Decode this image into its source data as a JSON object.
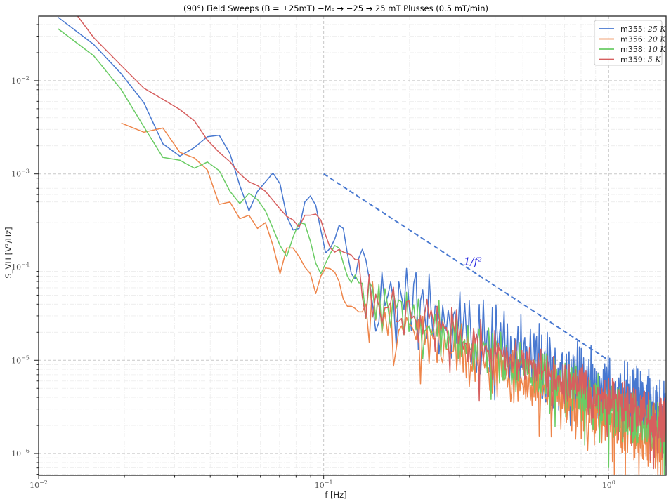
{
  "chart_data": {
    "type": "line",
    "title": "(90°) Field Sweeps (B = ±25mT) −M_s → −25 → 25 mT Plusses (0.5 mT/min)",
    "xlabel": "f [Hz]",
    "ylabel": "S_VH [V²/Hz]",
    "xscale": "log",
    "yscale": "log",
    "xlim": [
      0.01,
      1.59
    ],
    "ylim": [
      5.85e-07,
      0.0492
    ],
    "grid": true,
    "legend_position": "upper right",
    "x_ticks": [
      {
        "value": 0.01,
        "label": "10",
        "exp": "−2"
      },
      {
        "value": 0.1,
        "label": "10",
        "exp": "−1"
      },
      {
        "value": 1,
        "label": "10",
        "exp": "0"
      }
    ],
    "y_ticks": [
      {
        "value": 0.01,
        "label": "10",
        "exp": "−2"
      },
      {
        "value": 0.001,
        "label": "10",
        "exp": "−3"
      },
      {
        "value": 0.0001,
        "label": "10",
        "exp": "−4"
      },
      {
        "value": 1e-05,
        "label": "10",
        "exp": "−5"
      },
      {
        "value": 1e-06,
        "label": "10",
        "exp": "−6"
      }
    ],
    "frequency_step_hz": 0.003906,
    "series": [
      {
        "name": "m355: 25 K",
        "color": "#4878d0",
        "low_freq_points": [
          [
            0.0117,
            0.0478
          ],
          [
            0.0156,
            0.0245
          ],
          [
            0.0195,
            0.0118
          ],
          [
            0.0234,
            0.0058
          ],
          [
            0.0273,
            0.0021
          ],
          [
            0.0313,
            0.00155
          ],
          [
            0.0352,
            0.00192
          ],
          [
            0.0391,
            0.0025
          ],
          [
            0.043,
            0.0026
          ],
          [
            0.0469,
            0.00165
          ],
          [
            0.0508,
            0.00075
          ],
          [
            0.0547,
            0.0004
          ],
          [
            0.0586,
            0.00065
          ],
          [
            0.0625,
            0.00082
          ],
          [
            0.0664,
            0.00102
          ],
          [
            0.0703,
            0.00078
          ],
          [
            0.0742,
            0.00035
          ],
          [
            0.0781,
            0.00025
          ],
          [
            0.082,
            0.00026
          ],
          [
            0.0859,
            0.0005
          ],
          [
            0.0898,
            0.00058
          ],
          [
            0.0938,
            0.00046
          ],
          [
            0.0977,
            0.00025
          ],
          [
            0.1016,
            0.000142
          ],
          [
            0.1055,
            0.00016
          ],
          [
            0.1094,
            0.0002
          ],
          [
            0.1133,
            0.00028
          ],
          [
            0.1172,
            0.00026
          ],
          [
            0.1211,
            0.00014
          ],
          [
            0.125,
            8.5e-05
          ],
          [
            0.1289,
            7.5e-05
          ],
          [
            0.1328,
            0.000125
          ],
          [
            0.1367,
            0.000155
          ],
          [
            0.1406,
            0.00012
          ],
          [
            0.1445,
            7.5e-05
          ]
        ],
        "tail_model": {
          "amp_at_1hz": 4.5e-06,
          "slope": -1.35,
          "oscillation_db": 0.55,
          "period_pts": 3.3
        }
      },
      {
        "name": "m356: 20 K",
        "color": "#ee854a",
        "low_freq_points": [
          [
            0.0195,
            0.0035
          ],
          [
            0.0234,
            0.0028
          ],
          [
            0.0273,
            0.0031
          ],
          [
            0.0313,
            0.0017
          ],
          [
            0.0352,
            0.00148
          ],
          [
            0.0391,
            0.0011
          ],
          [
            0.043,
            0.00047
          ],
          [
            0.0469,
            0.0005
          ],
          [
            0.0508,
            0.00033
          ],
          [
            0.0547,
            0.00036
          ],
          [
            0.0586,
            0.00026
          ],
          [
            0.0625,
            0.0003
          ],
          [
            0.0664,
            0.00017
          ],
          [
            0.0703,
            8.5e-05
          ],
          [
            0.0742,
            0.00016
          ],
          [
            0.0781,
            0.00016
          ],
          [
            0.082,
            0.00013
          ],
          [
            0.0859,
            0.0001
          ],
          [
            0.0898,
            8.5e-05
          ],
          [
            0.0938,
            5.2e-05
          ],
          [
            0.0977,
            8e-05
          ],
          [
            0.1016,
            9.8e-05
          ],
          [
            0.1055,
            9.6e-05
          ],
          [
            0.1094,
            8.8e-05
          ],
          [
            0.1133,
            7e-05
          ],
          [
            0.1172,
            4.5e-05
          ],
          [
            0.1211,
            3.8e-05
          ],
          [
            0.125,
            3.8e-05
          ],
          [
            0.1289,
            3.6e-05
          ],
          [
            0.1328,
            3.3e-05
          ],
          [
            0.1367,
            3.3e-05
          ]
        ],
        "tail_model": {
          "amp_at_1hz": 2.3e-06,
          "slope": -1.4,
          "oscillation_db": 0.35,
          "period_pts": 2.1
        }
      },
      {
        "name": "m358: 10 K",
        "color": "#6acc64",
        "low_freq_points": [
          [
            0.0117,
            0.036
          ],
          [
            0.0156,
            0.0185
          ],
          [
            0.0195,
            0.008
          ],
          [
            0.0234,
            0.0032
          ],
          [
            0.0273,
            0.0015
          ],
          [
            0.0313,
            0.0014
          ],
          [
            0.0352,
            0.00115
          ],
          [
            0.0391,
            0.00134
          ],
          [
            0.043,
            0.00108
          ],
          [
            0.0469,
            0.00065
          ],
          [
            0.0508,
            0.00048
          ],
          [
            0.0547,
            0.00062
          ],
          [
            0.0586,
            0.00053
          ],
          [
            0.0625,
            0.0004
          ],
          [
            0.0664,
            0.00026
          ],
          [
            0.0703,
            0.00017
          ],
          [
            0.0742,
            0.00013
          ],
          [
            0.0781,
            0.00021
          ],
          [
            0.082,
            0.0003
          ],
          [
            0.0859,
            0.00029
          ],
          [
            0.0898,
            0.00019
          ],
          [
            0.0938,
            0.00011
          ],
          [
            0.0977,
            8.5e-05
          ],
          [
            0.1016,
            0.00011
          ],
          [
            0.1055,
            0.00014
          ],
          [
            0.1094,
            0.00017
          ],
          [
            0.1133,
            0.00016
          ],
          [
            0.1172,
            0.00011
          ],
          [
            0.1211,
            8e-05
          ],
          [
            0.125,
            6.8e-05
          ],
          [
            0.1289,
            8.2e-05
          ],
          [
            0.1328,
            6.8e-05
          ]
        ],
        "tail_model": {
          "amp_at_1hz": 3.2e-06,
          "slope": -1.4,
          "oscillation_db": 0.3,
          "period_pts": 2.5
        }
      },
      {
        "name": "m359: 5 K",
        "color": "#d65f5f",
        "low_freq_points": [
          [
            0.0137,
            0.0492
          ],
          [
            0.0156,
            0.029
          ],
          [
            0.0195,
            0.0145
          ],
          [
            0.0234,
            0.0083
          ],
          [
            0.0273,
            0.0063
          ],
          [
            0.0313,
            0.0049
          ],
          [
            0.0352,
            0.0037
          ],
          [
            0.0391,
            0.0023
          ],
          [
            0.043,
            0.0017
          ],
          [
            0.0469,
            0.00135
          ],
          [
            0.0508,
            0.001
          ],
          [
            0.0547,
            0.00082
          ],
          [
            0.0586,
            0.00075
          ],
          [
            0.0625,
            0.00065
          ],
          [
            0.0664,
            0.00052
          ],
          [
            0.0703,
            0.00042
          ],
          [
            0.0742,
            0.00035
          ],
          [
            0.0781,
            0.00032
          ],
          [
            0.082,
            0.00027
          ],
          [
            0.0859,
            0.00036
          ],
          [
            0.0898,
            0.00036
          ],
          [
            0.0938,
            0.00037
          ],
          [
            0.0977,
            0.00032
          ],
          [
            0.1016,
            0.00022
          ],
          [
            0.1055,
            0.00016
          ],
          [
            0.1094,
            0.000145
          ],
          [
            0.1133,
            0.000155
          ],
          [
            0.1172,
            0.000145
          ],
          [
            0.1211,
            0.00014
          ],
          [
            0.125,
            0.000135
          ],
          [
            0.1289,
            0.00012
          ],
          [
            0.1328,
            0.00012
          ]
        ],
        "tail_model": {
          "amp_at_1hz": 3.8e-06,
          "slope": -1.3,
          "oscillation_db": 0.25,
          "period_pts": 2.7
        }
      }
    ],
    "reference_line": {
      "label": "1/f²",
      "color": "#4878d0",
      "style": "dashed",
      "points": [
        [
          0.1,
          0.001
        ],
        [
          1.0,
          1e-05
        ]
      ],
      "label_position": [
        0.31,
        0.000105
      ]
    },
    "legend": [
      {
        "text": "m355:",
        "value": "25 K",
        "color": "#4878d0"
      },
      {
        "text": "m356:",
        "value": "20 K",
        "color": "#ee854a"
      },
      {
        "text": "m358:",
        "value": "10 K",
        "color": "#6acc64"
      },
      {
        "text": "m359:",
        "value": "5 K",
        "color": "#d65f5f"
      }
    ]
  },
  "labels": {
    "title": "(90°) Field Sweeps (B = ±25mT) −Mₛ → −25 → 25 mT Plusses (0.5 mT/min)",
    "xlabel": "f [Hz]",
    "ylabel": "S_VH [V²/Hz]",
    "annotation": "1/f²"
  }
}
